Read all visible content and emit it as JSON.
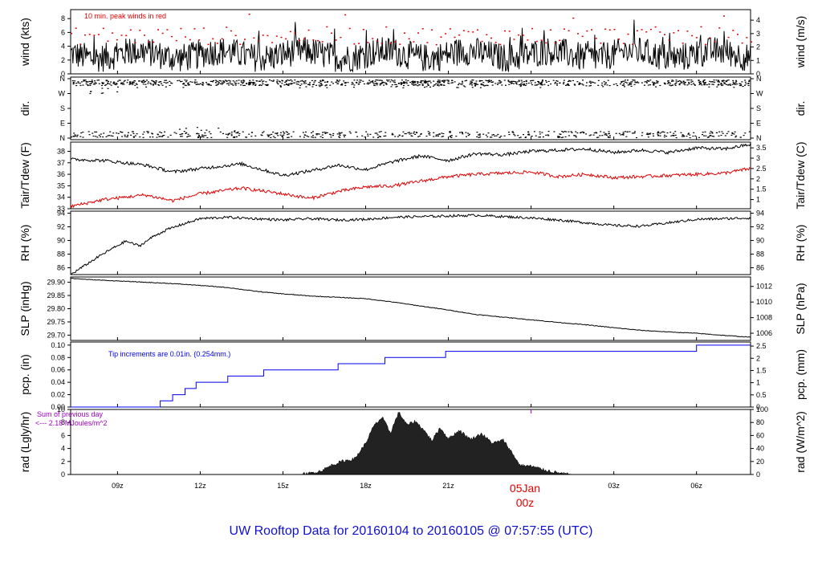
{
  "title": "UW Rooftop Data for 20160104  to  20160105 @ 07:57:55  (UTC)",
  "colors": {
    "black": "#000000",
    "red": "#e00000",
    "blue": "#0000ee",
    "purple": "#a000c0",
    "title_blue": "#1010d0"
  },
  "x_axis": {
    "unit": "hours since 20160104 00z",
    "range": [
      7.3,
      31.96
    ],
    "ticks": [
      {
        "x": 9,
        "label": "09z"
      },
      {
        "x": 12,
        "label": "12z"
      },
      {
        "x": 15,
        "label": "15z"
      },
      {
        "x": 18,
        "label": "18z"
      },
      {
        "x": 21,
        "label": "21z"
      },
      {
        "x": 24,
        "label": "00z"
      },
      {
        "x": 27,
        "label": "03z"
      },
      {
        "x": 30,
        "label": "06z"
      }
    ],
    "date_marker": {
      "x": 24,
      "date": "05Jan",
      "hour": "00z"
    }
  },
  "chart_data": [
    {
      "id": "wind",
      "type": "line",
      "ylabel": "wind (kts)",
      "ylabel_right": "wind (m/s)",
      "ylim": [
        0,
        9.3
      ],
      "yticks": [
        0,
        2,
        4,
        6,
        8
      ],
      "yticks_right": [
        0,
        1,
        2,
        3,
        4
      ],
      "annotation": "10 min. peak winds in red",
      "series": [
        {
          "kind": "mean",
          "min": 0.3,
          "max": 8.0,
          "typical": 2.8
        },
        {
          "kind": "peak_10min",
          "min": 3.2,
          "max": 9.1,
          "typical": 5.6
        }
      ]
    },
    {
      "id": "dir",
      "type": "scatter",
      "ylabel": "dir.",
      "ylabel_right": "dir.",
      "yticks_labels": [
        "N",
        "E",
        "S",
        "W",
        "N"
      ]
    },
    {
      "id": "temp",
      "type": "line",
      "ylabel": "Tair/Tdew (F)",
      "ylabel_right": "Tair/Tdew (C)",
      "ylim": [
        33,
        38.8
      ],
      "yticks": [
        33,
        34,
        35,
        36,
        37,
        38
      ],
      "yticks_right": [
        1,
        1.5,
        2,
        2.5,
        3,
        3.5
      ],
      "series": [
        {
          "kind": "Tair",
          "x": [
            7.3,
            8.5,
            10,
            11,
            12,
            13.5,
            15,
            16,
            17,
            18,
            19,
            20,
            21,
            22,
            23,
            24,
            25,
            26,
            27,
            28,
            29,
            30,
            31,
            31.96
          ],
          "y": [
            37.3,
            37.2,
            36.8,
            36.2,
            36.5,
            36.9,
            35.9,
            36.3,
            36.8,
            36.4,
            37.1,
            37.6,
            37.2,
            37.8,
            37.7,
            38.0,
            38.1,
            38.2,
            37.9,
            38.1,
            37.9,
            38.3,
            38.2,
            38.6
          ]
        },
        {
          "kind": "Tdew",
          "x": [
            7.3,
            8.5,
            10,
            11,
            12,
            13.5,
            15,
            16,
            17,
            18,
            19,
            20,
            21,
            22,
            23,
            24,
            25,
            26,
            27,
            28,
            29,
            30,
            31,
            31.96
          ],
          "y": [
            33.2,
            33.8,
            34.2,
            33.7,
            34.3,
            34.8,
            34.3,
            33.9,
            34.5,
            34.9,
            35.0,
            35.4,
            35.8,
            36.0,
            36.1,
            36.2,
            35.8,
            36.0,
            35.7,
            35.8,
            35.9,
            36.0,
            36.1,
            36.5
          ]
        }
      ]
    },
    {
      "id": "rh",
      "type": "line",
      "ylabel": "RH (%)",
      "ylabel_right": "RH (%)",
      "ylim": [
        85,
        94.3
      ],
      "yticks": [
        86,
        88,
        90,
        92,
        94
      ],
      "yticks_right": [
        86,
        88,
        90,
        92,
        94
      ],
      "series": [
        {
          "kind": "RH",
          "x": [
            7.3,
            7.8,
            8.3,
            8.8,
            9.3,
            9.8,
            10.3,
            10.8,
            11.3,
            12,
            13,
            14,
            15,
            16,
            17,
            18,
            19,
            20,
            21,
            22,
            23,
            24,
            25,
            26,
            27,
            28,
            29,
            30,
            31,
            31.96
          ],
          "y": [
            85.0,
            86.3,
            87.6,
            88.8,
            89.9,
            89.2,
            90.6,
            91.6,
            92.3,
            93.2,
            93.4,
            93.2,
            93.0,
            93.2,
            93.0,
            93.1,
            93.4,
            93.5,
            93.6,
            93.7,
            93.5,
            93.3,
            93.0,
            92.6,
            92.2,
            92.1,
            92.6,
            93.1,
            93.2,
            93.3
          ]
        }
      ]
    },
    {
      "id": "slp",
      "type": "line",
      "ylabel": "SLP (inHg)",
      "ylabel_right": "SLP (hPa)",
      "ylim": [
        29.68,
        29.92
      ],
      "yticks": [
        29.7,
        29.75,
        29.8,
        29.85,
        29.9
      ],
      "yticks_right": [
        1006,
        1008,
        1010,
        1012
      ],
      "series": [
        {
          "kind": "SLP",
          "x": [
            7.3,
            8,
            9,
            10,
            11,
            12,
            13,
            14,
            15,
            16,
            17,
            18,
            19,
            20,
            21,
            22,
            23,
            24,
            25,
            26,
            27,
            28,
            29,
            30,
            31,
            31.96
          ],
          "y": [
            29.915,
            29.91,
            29.905,
            29.9,
            29.895,
            29.888,
            29.88,
            29.866,
            29.856,
            29.848,
            29.843,
            29.838,
            29.825,
            29.81,
            29.795,
            29.778,
            29.768,
            29.758,
            29.748,
            29.739,
            29.728,
            29.718,
            29.712,
            29.707,
            29.699,
            29.692
          ]
        }
      ]
    },
    {
      "id": "pcp",
      "type": "line",
      "ylabel": "pcp. (in)",
      "ylabel_right": "pcp. (mm)",
      "ylim": [
        0,
        0.105
      ],
      "yticks": [
        0.0,
        0.02,
        0.04,
        0.06,
        0.08,
        0.1
      ],
      "yticks_right": [
        0,
        0.5,
        1,
        1.5,
        2,
        2.5
      ],
      "annotation": "Tip increments are 0.01in. (0.254mm.)",
      "series": [
        {
          "kind": "pcp",
          "x": [
            7.3,
            9.9,
            10.55,
            11.0,
            11.45,
            11.85,
            12.0,
            13.0,
            14.0,
            14.3,
            15.0,
            16.0,
            17.0,
            18.0,
            18.7,
            20.0,
            20.9,
            23.0,
            25.0,
            28.0,
            30.0,
            31.5,
            31.96
          ],
          "y": [
            0,
            0,
            0.01,
            0.02,
            0.03,
            0.04,
            0.04,
            0.05,
            0.05,
            0.06,
            0.06,
            0.06,
            0.07,
            0.07,
            0.08,
            0.08,
            0.09,
            0.09,
            0.09,
            0.09,
            0.1,
            0.1,
            0.1
          ]
        }
      ]
    },
    {
      "id": "rad",
      "type": "area",
      "ylabel": "rad (Lgly/hr)",
      "ylabel_right": "rad (W/m^2)",
      "ylim": [
        0,
        10
      ],
      "yticks": [
        0,
        2,
        4,
        6,
        8,
        10
      ],
      "yticks_right": [
        0,
        20,
        40,
        60,
        80,
        100
      ],
      "annotation_line1": "Sum of previous day",
      "annotation_line2": "<--- 2.18 MJoules/m^2",
      "series": [
        {
          "kind": "rad",
          "x": [
            7.3,
            15.6,
            16.0,
            16.4,
            16.8,
            17.2,
            17.6,
            18.0,
            18.3,
            18.6,
            18.9,
            19.2,
            19.5,
            19.8,
            20.1,
            20.4,
            20.7,
            21.0,
            21.4,
            21.8,
            22.2,
            22.6,
            23.0,
            23.3,
            23.6,
            24.0,
            24.4,
            24.8,
            25.2,
            25.6,
            31.96
          ],
          "y": [
            0,
            0,
            0.2,
            0.6,
            1.5,
            2.1,
            2.4,
            4.8,
            7.5,
            8.8,
            6.4,
            9.6,
            7.6,
            8.2,
            6.9,
            5.2,
            7.2,
            5.5,
            6.8,
            5.4,
            6.3,
            4.8,
            5.3,
            3.4,
            1.4,
            1.3,
            0.8,
            0.4,
            0.1,
            0,
            0
          ]
        }
      ]
    }
  ]
}
